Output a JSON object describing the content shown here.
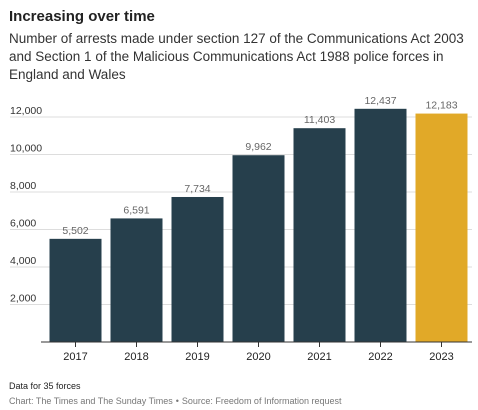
{
  "header": {
    "title": "Increasing over time",
    "subtitle": "Number of arrests made under section 127 of the Communications Act 2003 and Section 1 of the Malicious Communications Act 1988 police forces in England and Wales"
  },
  "footer": {
    "note": "Data for 35 forces",
    "credit": "Chart: The Times and The Sunday Times",
    "separator": "•",
    "source": "Source: Freedom of Information request"
  },
  "chart_data": {
    "type": "bar",
    "title": "Increasing over time",
    "subtitle": "Number of arrests made under section 127 of the Communications Act 2003 and Section 1 of the Malicious Communications Act 1988 police forces in England and Wales",
    "xlabel": "",
    "ylabel": "",
    "categories": [
      "2017",
      "2018",
      "2019",
      "2020",
      "2021",
      "2022",
      "2023"
    ],
    "values": [
      5502,
      6591,
      7734,
      9962,
      11403,
      12437,
      12183
    ],
    "value_labels": [
      "5,502",
      "6,591",
      "7,734",
      "9,962",
      "11,403",
      "12,437",
      "12,183"
    ],
    "ylim": [
      0,
      13000
    ],
    "yticks": [
      2000,
      4000,
      6000,
      8000,
      10000,
      12000
    ],
    "ytick_labels": [
      "2,000",
      "4,000",
      "6,000",
      "8,000",
      "10,000",
      "12,000"
    ],
    "grid": true,
    "colors": {
      "default": "#263f4c",
      "highlight": "#e1a928",
      "grid": "#dddddd",
      "axis": "#333333"
    },
    "highlight_index": 6
  }
}
